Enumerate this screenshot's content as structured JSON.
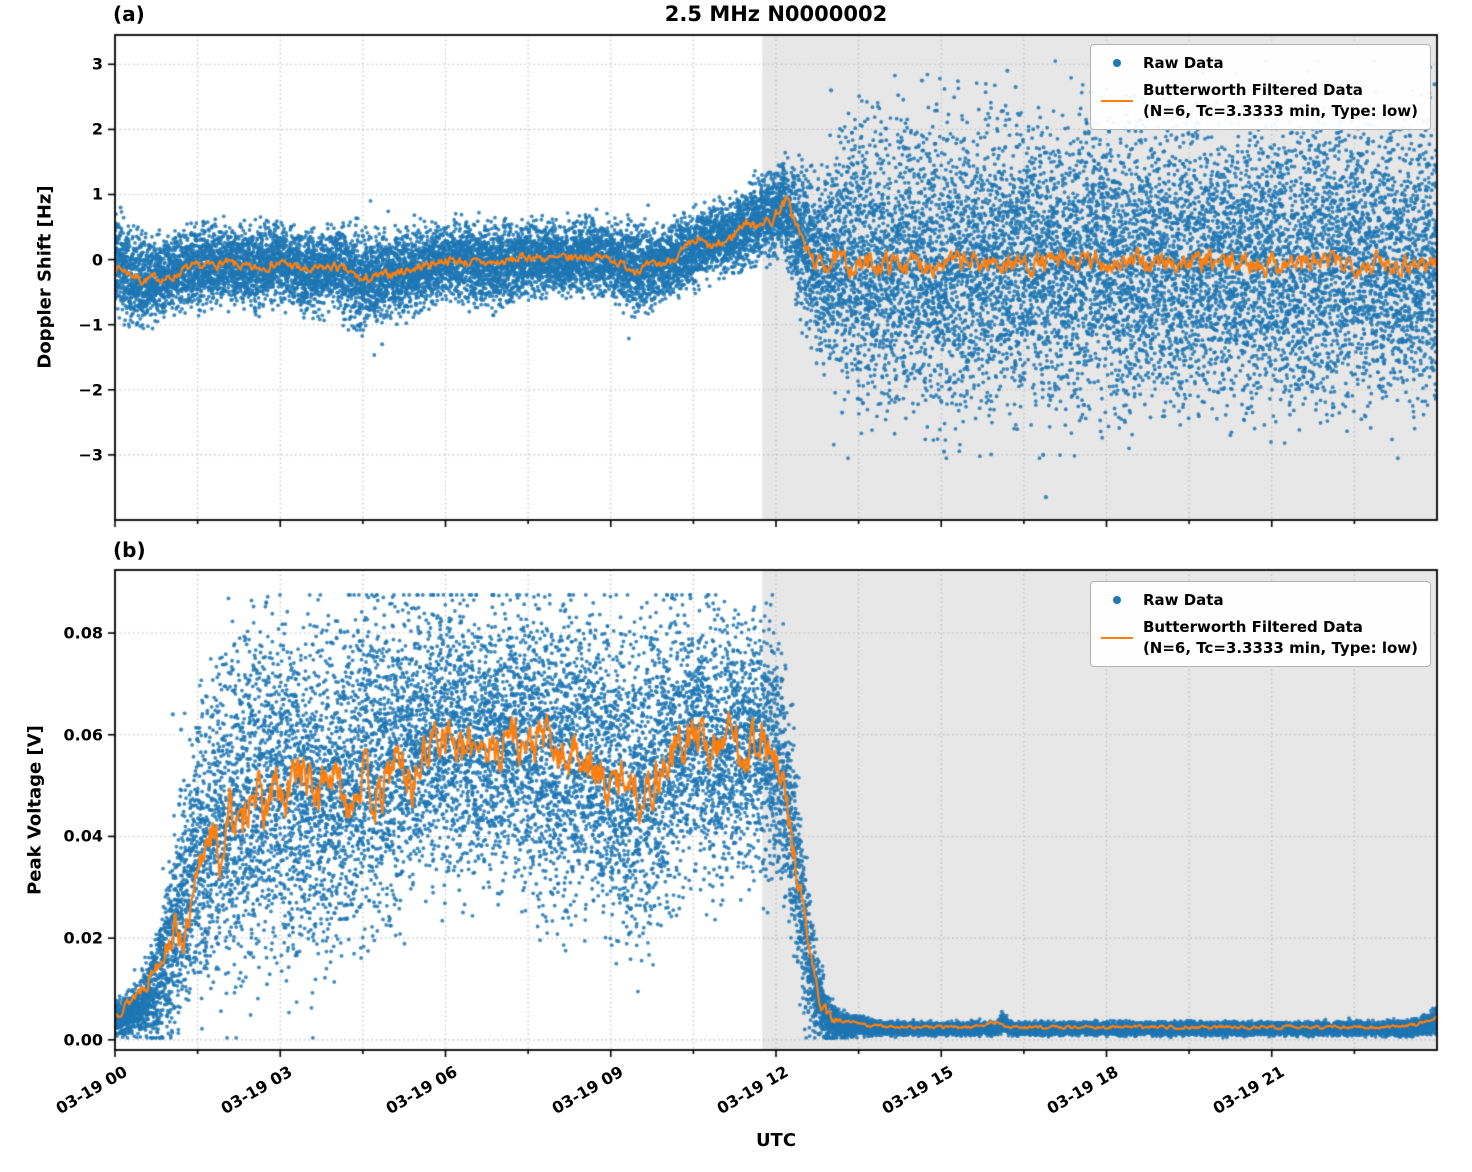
{
  "figure": {
    "title": "2.5 MHz N0000002",
    "xlabel": "UTC",
    "background": "#ffffff",
    "colors": {
      "raw": "#1f77b4",
      "filtered": "#ff7f0e",
      "shade": "#e7e7e7",
      "grid": "#bdbdbd",
      "spine": "#000000"
    },
    "legend": {
      "raw_label": "Raw Data",
      "filtered_label": "Butterworth Filtered Data",
      "filtered_sublabel": "(N=6, Tc=3.3333 min, Type: low)"
    },
    "xlim": [
      0,
      24
    ],
    "xticks": {
      "positions": [
        0,
        3,
        6,
        9,
        12,
        15,
        18,
        21
      ],
      "labels": [
        "03-19 00",
        "03-19 03",
        "03-19 06",
        "03-19 09",
        "03-19 12",
        "03-19 15",
        "03-19 18",
        "03-19 21"
      ]
    },
    "x_minor_positions": [
      1.5,
      4.5,
      7.5,
      10.5,
      13.5,
      16.5,
      19.5,
      22.5
    ],
    "shade_region": [
      11.75,
      24
    ]
  },
  "chart_data": [
    {
      "panel": "(a)",
      "type": "scatter",
      "ylabel": "Doppler Shift [Hz]",
      "ylim": [
        -4.0,
        3.45
      ],
      "yticks": [
        -3,
        -2,
        -1,
        0,
        1,
        2,
        3
      ],
      "ytick_labels": [
        "−3",
        "−2",
        "−1",
        "0",
        "1",
        "2",
        "3"
      ],
      "raw": {
        "name": "Raw Data",
        "n_points": 21000,
        "seed": 42,
        "clip": [
          -3.05,
          3.05
        ],
        "tail_prob": 0.012,
        "envelope": {
          "x": [
            0,
            0.3,
            0.7,
            1.0,
            1.5,
            2.0,
            2.5,
            3.0,
            3.5,
            4.0,
            4.5,
            5.0,
            5.5,
            6.0,
            6.5,
            7.0,
            7.5,
            8.0,
            8.5,
            9.0,
            9.5,
            10.0,
            10.4,
            10.8,
            11.2,
            11.6,
            11.9,
            12.15,
            12.4,
            12.7,
            13.0,
            13.5,
            14.0,
            15.0,
            16.0,
            17.0,
            18.0,
            19.0,
            20.0,
            21.0,
            22.0,
            23.0,
            24.0
          ],
          "center": [
            0.0,
            -0.3,
            -0.35,
            -0.2,
            -0.1,
            -0.05,
            -0.15,
            -0.05,
            -0.2,
            -0.1,
            -0.35,
            -0.25,
            -0.15,
            0.0,
            -0.05,
            -0.1,
            0.05,
            0.0,
            0.05,
            0.0,
            -0.15,
            -0.05,
            0.1,
            0.3,
            0.35,
            0.6,
            0.65,
            0.85,
            0.35,
            -0.1,
            0.0,
            -0.1,
            -0.1,
            -0.1,
            -0.1,
            -0.1,
            -0.1,
            -0.1,
            -0.1,
            -0.05,
            -0.1,
            -0.1,
            -0.1
          ],
          "spread": [
            0.35,
            0.32,
            0.3,
            0.27,
            0.3,
            0.25,
            0.3,
            0.26,
            0.3,
            0.3,
            0.35,
            0.3,
            0.3,
            0.25,
            0.3,
            0.3,
            0.26,
            0.25,
            0.25,
            0.3,
            0.3,
            0.25,
            0.25,
            0.25,
            0.27,
            0.3,
            0.3,
            0.35,
            0.55,
            0.6,
            0.8,
            1.0,
            1.05,
            1.05,
            1.05,
            1.0,
            1.05,
            1.05,
            1.0,
            1.05,
            1.05,
            1.0,
            1.05
          ]
        },
        "outliers": [
          [
            13.0,
            2.6
          ],
          [
            14.65,
            2.75
          ],
          [
            16.2,
            2.9
          ],
          [
            16.35,
            2.65
          ],
          [
            16.9,
            -3.65
          ],
          [
            16.85,
            -3.0
          ],
          [
            15.05,
            -2.95
          ],
          [
            20.9,
            2.6
          ],
          [
            13.2,
            -2.35
          ],
          [
            22.3,
            2.5
          ],
          [
            0.1,
            0.8
          ],
          [
            4.85,
            -1.3
          ]
        ]
      },
      "filtered": {
        "name": "Butterworth Filtered Data (N=6, Tc=3.3333 min, Type: low)",
        "seed": 7,
        "x": [
          0,
          0.25,
          0.5,
          0.75,
          1,
          1.25,
          1.5,
          2,
          2.5,
          3,
          3.25,
          3.5,
          4,
          4.25,
          4.5,
          5,
          5.5,
          6,
          6.5,
          7,
          7.5,
          8,
          8.5,
          9,
          9.25,
          9.5,
          10,
          10.3,
          10.6,
          10.8,
          11,
          11.2,
          11.45,
          11.6,
          11.75,
          11.9,
          12.05,
          12.2,
          12.35,
          12.5,
          12.65,
          12.8,
          13,
          13.5,
          14,
          24
        ],
        "y": [
          -0.1,
          -0.2,
          -0.32,
          -0.28,
          -0.3,
          -0.15,
          -0.12,
          -0.05,
          -0.15,
          -0.05,
          -0.1,
          -0.18,
          -0.1,
          -0.2,
          -0.32,
          -0.22,
          -0.12,
          0.0,
          -0.05,
          -0.05,
          0.05,
          0.0,
          0.05,
          0.02,
          -0.1,
          -0.15,
          -0.05,
          0.12,
          0.3,
          0.18,
          0.22,
          0.35,
          0.6,
          0.5,
          0.62,
          0.55,
          0.78,
          0.9,
          0.6,
          0.25,
          0.0,
          -0.08,
          -0.02,
          -0.1,
          -0.05,
          -0.05
        ],
        "jitter": {
          "x": [
            0,
            11,
            12.5,
            13,
            24
          ],
          "amp": [
            0.07,
            0.07,
            0.1,
            0.17,
            0.17
          ]
        }
      }
    },
    {
      "panel": "(b)",
      "type": "scatter",
      "ylabel": "Peak Voltage [V]",
      "ylim": [
        -0.002,
        0.0924
      ],
      "yticks": [
        0.0,
        0.02,
        0.04,
        0.06,
        0.08
      ],
      "ytick_labels": [
        "0.00",
        "0.02",
        "0.04",
        "0.06",
        "0.08"
      ],
      "raw": {
        "name": "Raw Data",
        "n_points": 21000,
        "seed": 99,
        "clip": [
          0.0004,
          0.0875
        ],
        "tail_prob": 0.02,
        "envelope": {
          "x": [
            0,
            0.25,
            0.5,
            0.75,
            1.0,
            1.25,
            1.5,
            1.75,
            2.0,
            2.5,
            3.0,
            3.5,
            4.0,
            4.5,
            5.0,
            5.5,
            6.0,
            6.5,
            7.0,
            7.5,
            8.0,
            8.5,
            9.0,
            9.5,
            10.0,
            10.5,
            11.0,
            11.5,
            11.9,
            12.15,
            12.35,
            12.55,
            12.75,
            12.95,
            13.2,
            13.6,
            14.0,
            15.0,
            16.0,
            16.1,
            16.3,
            17.0,
            18.0,
            19.0,
            20.0,
            21.0,
            22.0,
            23.0,
            23.7,
            24.0
          ],
          "center": [
            0.004,
            0.005,
            0.007,
            0.01,
            0.018,
            0.028,
            0.036,
            0.04,
            0.044,
            0.048,
            0.05,
            0.047,
            0.05,
            0.052,
            0.055,
            0.058,
            0.06,
            0.057,
            0.06,
            0.058,
            0.054,
            0.057,
            0.052,
            0.05,
            0.055,
            0.06,
            0.057,
            0.06,
            0.057,
            0.05,
            0.035,
            0.018,
            0.008,
            0.004,
            0.003,
            0.0025,
            0.0022,
            0.0022,
            0.0022,
            0.0032,
            0.0022,
            0.0022,
            0.0022,
            0.0022,
            0.0022,
            0.0022,
            0.0022,
            0.0022,
            0.0025,
            0.004
          ],
          "spread": [
            0.0015,
            0.002,
            0.003,
            0.005,
            0.008,
            0.011,
            0.013,
            0.014,
            0.015,
            0.016,
            0.015,
            0.015,
            0.015,
            0.015,
            0.014,
            0.013,
            0.013,
            0.013,
            0.012,
            0.013,
            0.014,
            0.013,
            0.014,
            0.015,
            0.014,
            0.012,
            0.012,
            0.011,
            0.012,
            0.011,
            0.01,
            0.007,
            0.004,
            0.002,
            0.0012,
            0.0008,
            0.0006,
            0.0006,
            0.0006,
            0.0009,
            0.0006,
            0.0006,
            0.0006,
            0.0006,
            0.0006,
            0.0006,
            0.0006,
            0.0006,
            0.0008,
            0.0012
          ]
        },
        "outliers": [
          [
            1.05,
            0.064
          ],
          [
            1.2,
            0.061
          ],
          [
            2.1,
            0.072
          ],
          [
            16.1,
            0.0055
          ],
          [
            23.95,
            0.006
          ]
        ]
      },
      "filtered": {
        "name": "Butterworth Filtered Data (N=6, Tc=3.3333 min, Type: low)",
        "seed": 13,
        "x": [
          0,
          0.3,
          0.6,
          0.9,
          1.1,
          1.3,
          1.5,
          1.7,
          1.9,
          2.1,
          2.3,
          2.5,
          2.7,
          2.9,
          3.1,
          3.3,
          3.6,
          3.9,
          4.2,
          4.5,
          4.8,
          5.1,
          5.4,
          5.7,
          6.0,
          6.3,
          6.6,
          6.9,
          7.2,
          7.5,
          7.8,
          8.1,
          8.4,
          8.7,
          9.0,
          9.3,
          9.6,
          9.9,
          10.2,
          10.5,
          10.8,
          11.1,
          11.4,
          11.7,
          11.95,
          12.15,
          12.35,
          12.5,
          12.65,
          12.8,
          13.0,
          13.3,
          13.7,
          14.5,
          15.5,
          16.05,
          16.15,
          17,
          18,
          19,
          20,
          21,
          22,
          23,
          23.6,
          24
        ],
        "y": [
          0.005,
          0.008,
          0.012,
          0.018,
          0.022,
          0.02,
          0.03,
          0.043,
          0.035,
          0.046,
          0.04,
          0.052,
          0.044,
          0.05,
          0.045,
          0.055,
          0.048,
          0.053,
          0.047,
          0.052,
          0.046,
          0.056,
          0.05,
          0.058,
          0.062,
          0.055,
          0.06,
          0.056,
          0.061,
          0.057,
          0.06,
          0.054,
          0.058,
          0.052,
          0.049,
          0.053,
          0.047,
          0.053,
          0.057,
          0.06,
          0.057,
          0.061,
          0.057,
          0.06,
          0.055,
          0.048,
          0.035,
          0.025,
          0.015,
          0.007,
          0.004,
          0.0035,
          0.0028,
          0.0025,
          0.0025,
          0.0035,
          0.0025,
          0.0025,
          0.0025,
          0.0025,
          0.0025,
          0.0025,
          0.0025,
          0.0025,
          0.003,
          0.0045
        ],
        "jitter": {
          "x": [
            0,
            0.8,
            1.5,
            12.2,
            12.8,
            13.2,
            24
          ],
          "amp": [
            0.0008,
            0.002,
            0.0045,
            0.0045,
            0.0015,
            0.0003,
            0.0003
          ]
        },
        "clip_min": 0.0018
      }
    }
  ]
}
